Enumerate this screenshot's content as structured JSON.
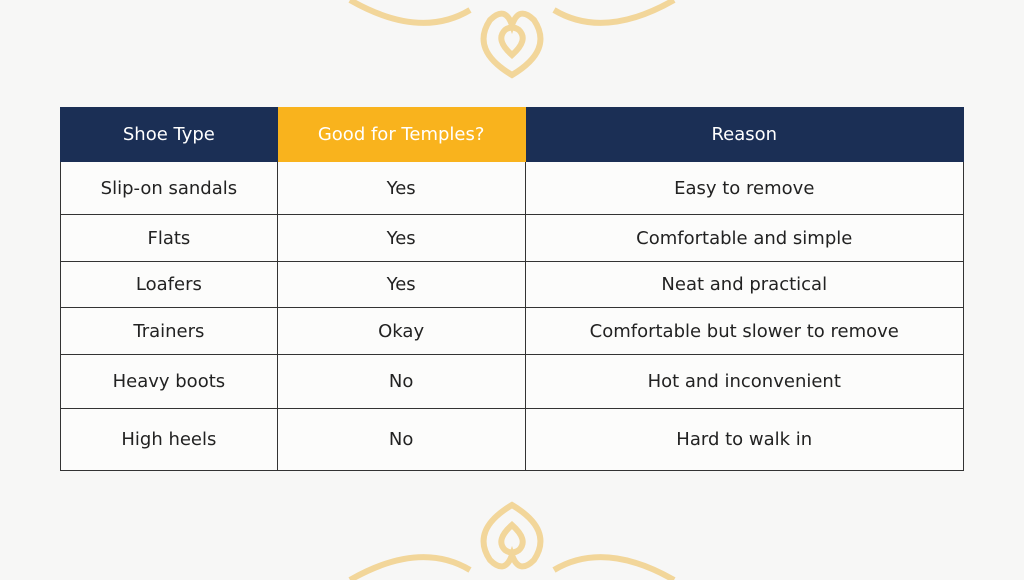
{
  "table": {
    "headers": [
      "Shoe Type",
      "Good for Temples?",
      "Reason"
    ],
    "rows": [
      [
        "Slip-on sandals",
        "Yes",
        "Easy to remove"
      ],
      [
        "Flats",
        "Yes",
        "Comfortable and simple"
      ],
      [
        "Loafers",
        "Yes",
        "Neat and practical"
      ],
      [
        "Trainers",
        "Okay",
        "Comfortable but slower to remove"
      ],
      [
        "Heavy boots",
        "No",
        "Hot and inconvenient"
      ],
      [
        "High heels",
        "No",
        "Hard to walk in"
      ]
    ]
  }
}
